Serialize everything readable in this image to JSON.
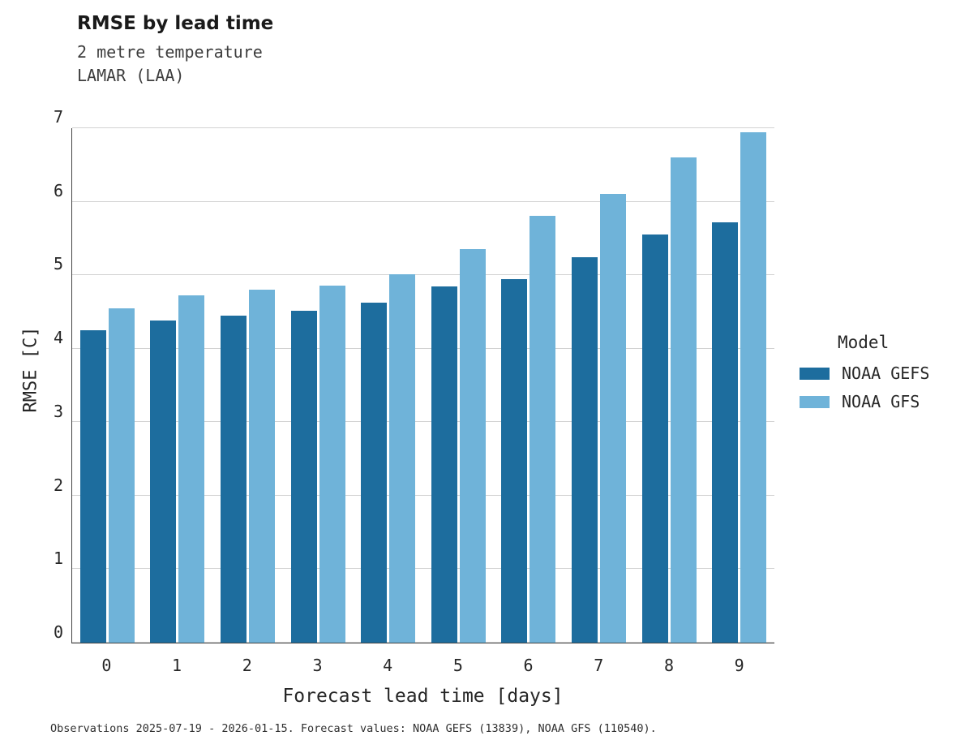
{
  "header": {
    "title": "RMSE by lead time",
    "subtitle": "2 metre temperature",
    "station": "LAMAR (LAA)"
  },
  "legend": {
    "title": "Model",
    "items": [
      {
        "label": "NOAA GEFS",
        "color": "#1d6d9e"
      },
      {
        "label": "NOAA GFS",
        "color": "#6fb3d9"
      }
    ]
  },
  "footer": "Observations 2025-07-19 - 2026-01-15. Forecast values: NOAA GEFS (13839), NOAA GFS (110540).",
  "chart_data": {
    "type": "bar",
    "title": "RMSE by lead time",
    "subtitle": "2 metre temperature",
    "station": "LAMAR (LAA)",
    "xlabel": "Forecast lead time [days]",
    "ylabel": "RMSE [C]",
    "categories": [
      "0",
      "1",
      "2",
      "3",
      "4",
      "5",
      "6",
      "7",
      "8",
      "9"
    ],
    "series": [
      {
        "name": "NOAA GEFS",
        "color": "#1d6d9e",
        "values": [
          4.25,
          4.38,
          4.45,
          4.52,
          4.63,
          4.85,
          4.95,
          5.24,
          5.55,
          5.72
        ]
      },
      {
        "name": "NOAA GFS",
        "color": "#6fb3d9",
        "values": [
          4.55,
          4.73,
          4.8,
          4.86,
          5.01,
          5.35,
          5.81,
          6.11,
          6.6,
          6.95
        ]
      }
    ],
    "ylim": [
      0,
      7
    ],
    "yticks": [
      0,
      1,
      2,
      3,
      4,
      5,
      6,
      7
    ],
    "grid": true,
    "legend_position": "right"
  }
}
